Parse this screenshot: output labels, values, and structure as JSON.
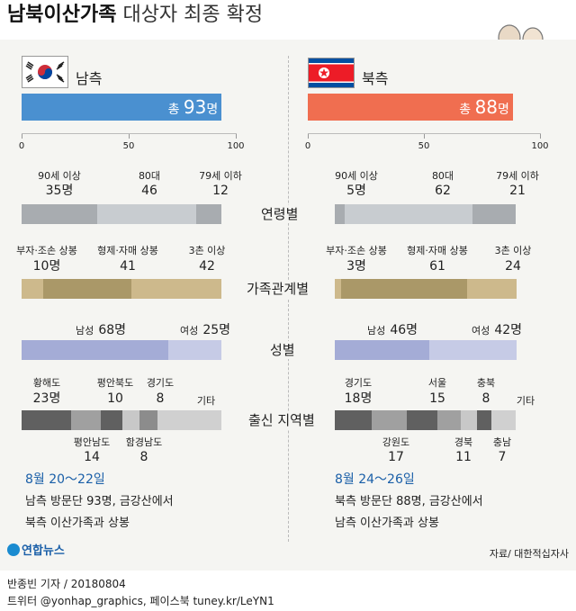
{
  "title": {
    "bold": "남북이산가족",
    "rest": "대상자 최종 확정"
  },
  "colors": {
    "south_total": "#4a90d0",
    "north_total": "#f06e50"
  },
  "chart_data": {
    "type": "bar",
    "axis": {
      "ticks": [
        0,
        50,
        100
      ],
      "xlim": [
        0,
        100
      ]
    },
    "south": {
      "label": "남측",
      "total": 93,
      "total_label": "총",
      "total_unit": "명",
      "sections": {
        "age": {
          "labels": [
            "90세 이상",
            "80대",
            "79세 이하"
          ],
          "values": [
            35,
            46,
            12
          ],
          "value_texts": [
            "35명",
            "46",
            "12"
          ],
          "colors": [
            "#a8acb0",
            "#c8ccd0",
            "#a8acb0"
          ]
        },
        "relation": {
          "labels": [
            "부자·조손 상봉",
            "형제·자매 상봉",
            "3촌 이상"
          ],
          "values": [
            10,
            41,
            42
          ],
          "value_texts": [
            "10명",
            "41",
            "42"
          ],
          "colors": [
            "#cdb98c",
            "#aa9868",
            "#cdb98c"
          ]
        },
        "gender": {
          "labels": [
            "남성",
            "여성"
          ],
          "values": [
            68,
            25
          ],
          "value_texts": [
            "68명",
            "25명"
          ],
          "colors": [
            "#a4acd6",
            "#c6cbe6"
          ]
        },
        "region": {
          "labels": [
            "황해도",
            "평안남도",
            "평안북도",
            "함경남도",
            "경기도",
            "기타"
          ],
          "values": [
            23,
            14,
            10,
            8,
            8,
            30
          ],
          "value_texts": [
            "23명",
            "14",
            "10",
            "8",
            "8",
            ""
          ],
          "colors": [
            "#606060",
            "#a0a0a0",
            "#606060",
            "#c8c8c8",
            "#8c8c8c",
            "#d0d0d0"
          ]
        }
      },
      "dates": "8월 20～22일",
      "note_line1": "남측 방문단 93명, 금강산에서",
      "note_line2": "북측 이산가족과 상봉"
    },
    "north": {
      "label": "북측",
      "total": 88,
      "total_label": "총",
      "total_unit": "명",
      "sections": {
        "age": {
          "labels": [
            "90세 이상",
            "80대",
            "79세 이하"
          ],
          "values": [
            5,
            62,
            21
          ],
          "value_texts": [
            "5명",
            "62",
            "21"
          ],
          "colors": [
            "#a8acb0",
            "#c8ccd0",
            "#a8acb0"
          ]
        },
        "relation": {
          "labels": [
            "부자·조손 상봉",
            "형제·자매 상봉",
            "3촌 이상"
          ],
          "values": [
            3,
            61,
            24
          ],
          "value_texts": [
            "3명",
            "61",
            "24"
          ],
          "colors": [
            "#cdb98c",
            "#aa9868",
            "#cdb98c"
          ]
        },
        "gender": {
          "labels": [
            "남성",
            "여성"
          ],
          "values": [
            46,
            42
          ],
          "value_texts": [
            "46명",
            "42명"
          ],
          "colors": [
            "#a4acd6",
            "#c6cbe6"
          ]
        },
        "region": {
          "labels": [
            "경기도",
            "강원도",
            "서울",
            "경북",
            "충북",
            "충남",
            "기타"
          ],
          "values": [
            18,
            17,
            15,
            11,
            8,
            7,
            12
          ],
          "value_texts": [
            "18명",
            "17",
            "15",
            "11",
            "8",
            "7",
            ""
          ],
          "colors": [
            "#606060",
            "#a0a0a0",
            "#606060",
            "#a0a0a0",
            "#c8c8c8",
            "#606060",
            "#d0d0d0"
          ]
        }
      },
      "dates": "8월 24～26일",
      "note_line1": "북측 방문단 88명, 금강산에서",
      "note_line2": "남측 이산가족과 상봉"
    },
    "categories": {
      "age": "연령별",
      "relation": "가족관계별",
      "gender": "성별",
      "region": "출신 지역별"
    }
  },
  "source": "자료/ 대한적십자사",
  "logo": "연합뉴스",
  "credit": {
    "reporter": "반종빈 기자",
    "date": "/ 20180804",
    "social": "트위터 @yonhap_graphics, 페이스북 tuney.kr/LeYN1"
  }
}
